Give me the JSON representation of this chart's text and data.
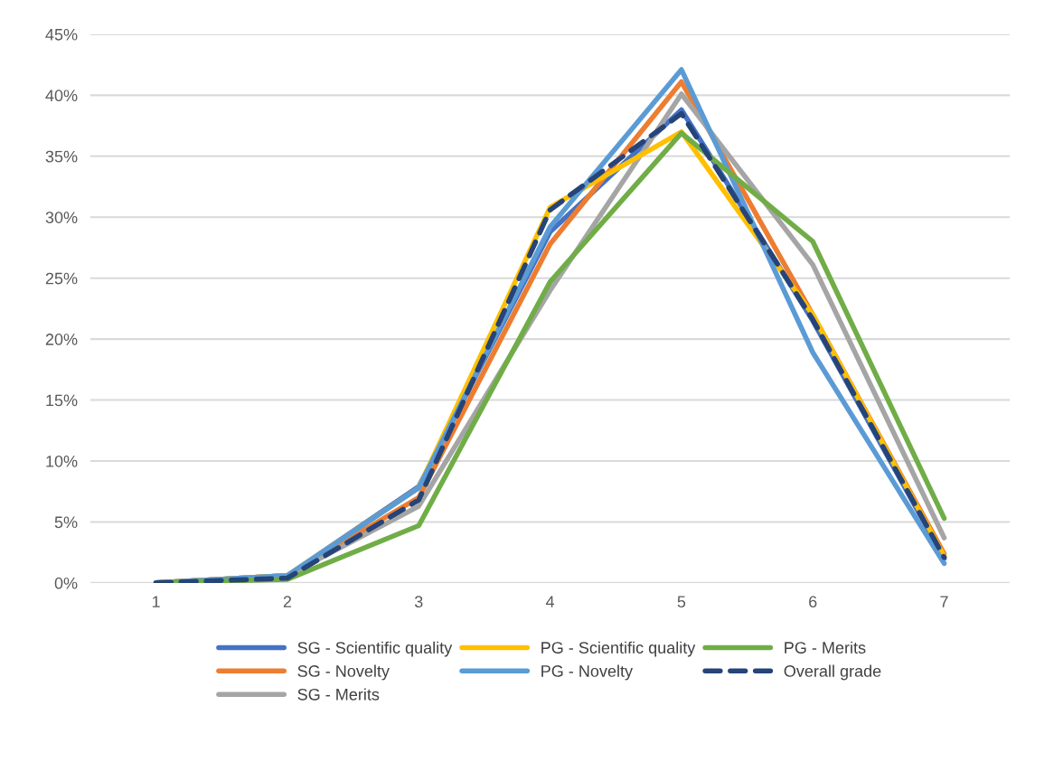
{
  "chart_data": {
    "type": "line",
    "categories": [
      "1",
      "2",
      "3",
      "4",
      "5",
      "6",
      "7"
    ],
    "series": [
      {
        "name": "SG - Scientific quality",
        "color": "#4472c4",
        "values": [
          0,
          0.6,
          7.9,
          28.8,
          38.8,
          21.5,
          2.0
        ]
      },
      {
        "name": "SG - Novelty",
        "color": "#ed7d31",
        "values": [
          0,
          0.6,
          7.0,
          27.8,
          41.1,
          22.0,
          2.4
        ]
      },
      {
        "name": "SG - Merits",
        "color": "#a5a5a5",
        "values": [
          0,
          0.6,
          6.3,
          24.0,
          40.1,
          26.1,
          3.7
        ]
      },
      {
        "name": "PG - Scientific quality",
        "color": "#ffc000",
        "values": [
          0,
          0.6,
          7.8,
          30.8,
          37.0,
          22.0,
          2.2
        ]
      },
      {
        "name": "PG - Novelty",
        "color": "#5b9bd5",
        "values": [
          0,
          0.6,
          7.8,
          29.2,
          42.1,
          18.9,
          1.6
        ]
      },
      {
        "name": "PG - Merits",
        "color": "#70ad47",
        "values": [
          0,
          0.3,
          4.7,
          24.7,
          36.9,
          28.0,
          5.3
        ]
      },
      {
        "name": "Overall grade",
        "color": "#264478",
        "line_style": "dashed",
        "values": [
          0,
          0.4,
          6.8,
          30.6,
          38.5,
          21.6,
          2.1
        ]
      }
    ],
    "ylim": [
      0,
      45
    ],
    "yticks": [
      {
        "value": 0,
        "label": "0%"
      },
      {
        "value": 5,
        "label": "5%"
      },
      {
        "value": 10,
        "label": "10%"
      },
      {
        "value": 15,
        "label": "15%"
      },
      {
        "value": 20,
        "label": "20%"
      },
      {
        "value": 25,
        "label": "25%"
      },
      {
        "value": 30,
        "label": "30%"
      },
      {
        "value": 35,
        "label": "35%"
      },
      {
        "value": 40,
        "label": "40%"
      },
      {
        "value": 45,
        "label": "45%"
      }
    ],
    "grid": "y",
    "legend": "bottom",
    "marker": "none",
    "line_style": "solid"
  }
}
